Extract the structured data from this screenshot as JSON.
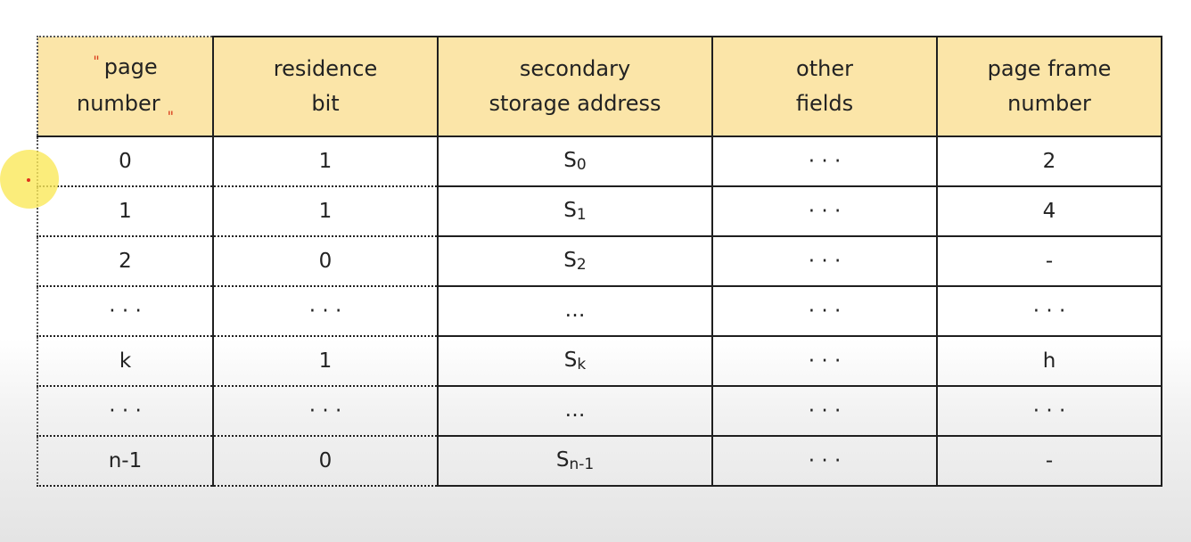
{
  "table": {
    "headers": [
      {
        "lines": [
          "page",
          "number"
        ]
      },
      {
        "lines": [
          "residence",
          "bit"
        ]
      },
      {
        "lines": [
          "secondary",
          "storage address"
        ]
      },
      {
        "lines": [
          "other",
          "fields"
        ]
      },
      {
        "lines": [
          "page frame",
          "number"
        ]
      }
    ],
    "quote_open": "\"",
    "quote_close": "\"",
    "rows": [
      {
        "page": "0",
        "bit": "1",
        "addr_base": "S",
        "addr_sub": "0",
        "other": "· · ·",
        "frame": "2"
      },
      {
        "page": "1",
        "bit": "1",
        "addr_base": "S",
        "addr_sub": "1",
        "other": "· · ·",
        "frame": "4"
      },
      {
        "page": "2",
        "bit": "0",
        "addr_base": "S",
        "addr_sub": "2",
        "other": "· · ·",
        "frame": "-"
      },
      {
        "page": "· · ·",
        "bit": "· · ·",
        "addr_base": "…",
        "addr_sub": "",
        "other": "· · ·",
        "frame": "· · ·"
      },
      {
        "page": "k",
        "bit": "1",
        "addr_base": "S",
        "addr_sub": "k",
        "other": "· · ·",
        "frame": "h"
      },
      {
        "page": "· · ·",
        "bit": "· · ·",
        "addr_base": "…",
        "addr_sub": "",
        "other": "· · ·",
        "frame": "· · ·"
      },
      {
        "page": "n-1",
        "bit": "0",
        "addr_base": "S",
        "addr_sub": "n-1",
        "other": "· · ·",
        "frame": "-"
      }
    ]
  }
}
